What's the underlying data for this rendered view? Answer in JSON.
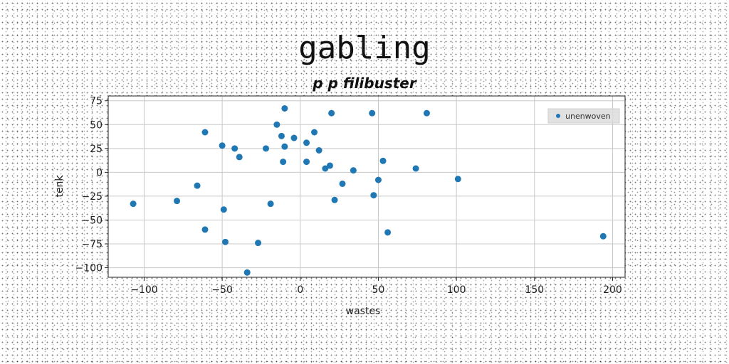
{
  "chart_data": {
    "type": "scatter",
    "title": "gabling",
    "subtitle": "p p filibuster",
    "xlabel": "wastes",
    "ylabel": "tenk",
    "xlim": [
      -123,
      208
    ],
    "ylim": [
      -110,
      80
    ],
    "xticks": [
      -100,
      -50,
      0,
      50,
      100,
      150,
      200
    ],
    "yticks": [
      75,
      50,
      25,
      0,
      -25,
      -50,
      -75,
      -100
    ],
    "grid": true,
    "legend": "top-right",
    "color": "#1f77b4",
    "series": [
      {
        "name": "unenwoven",
        "points": [
          [
            -107,
            -33
          ],
          [
            -79,
            -30
          ],
          [
            -66,
            -14
          ],
          [
            -61,
            -60
          ],
          [
            -61,
            42
          ],
          [
            -50,
            28
          ],
          [
            -49,
            -39
          ],
          [
            -48,
            -73
          ],
          [
            -42,
            25
          ],
          [
            -39,
            16
          ],
          [
            -34,
            -105
          ],
          [
            -27,
            -74
          ],
          [
            -22,
            25
          ],
          [
            -19,
            -33
          ],
          [
            -15,
            50
          ],
          [
            -10,
            67
          ],
          [
            -12,
            38
          ],
          [
            -11,
            11
          ],
          [
            -10,
            27
          ],
          [
            -4,
            36
          ],
          [
            4,
            31
          ],
          [
            4,
            11
          ],
          [
            9,
            42
          ],
          [
            12,
            23
          ],
          [
            16,
            4
          ],
          [
            19,
            7
          ],
          [
            20,
            62
          ],
          [
            22,
            -29
          ],
          [
            27,
            -12
          ],
          [
            34,
            2
          ],
          [
            46,
            62
          ],
          [
            47,
            -24
          ],
          [
            50,
            -8
          ],
          [
            53,
            12
          ],
          [
            56,
            -63
          ],
          [
            74,
            4
          ],
          [
            81,
            62
          ],
          [
            101,
            -7
          ],
          [
            194,
            -67
          ]
        ]
      }
    ]
  }
}
